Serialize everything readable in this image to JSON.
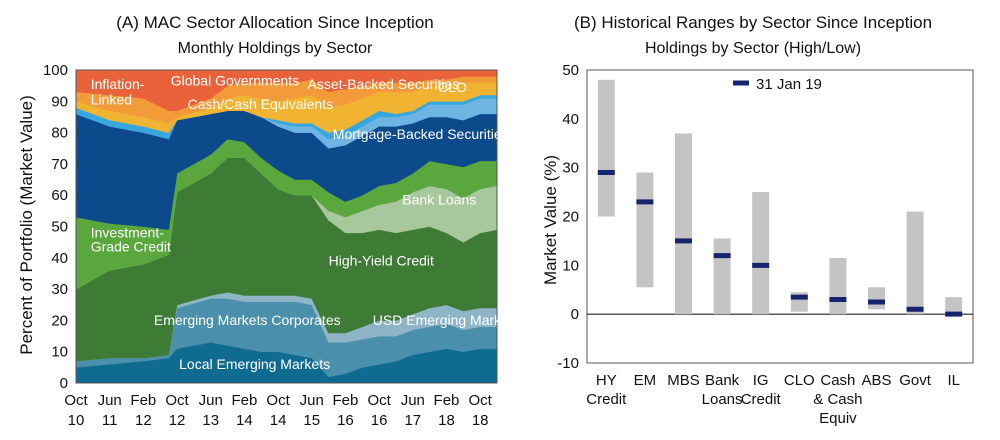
{
  "chart_data": [
    {
      "type": "area",
      "title": "(A) MAC Sector Allocation Since Inception",
      "subtitle": "Monthly Holdings by Sector",
      "ylabel": "Percent of Portfolio (Market Value)",
      "ylim": [
        0,
        100
      ],
      "yticks": [
        0,
        10,
        20,
        30,
        40,
        50,
        60,
        70,
        80,
        90,
        100
      ],
      "xticks": [
        {
          "month": "Oct",
          "year": "10",
          "t": 0
        },
        {
          "month": "Jun",
          "year": "11",
          "t": 8
        },
        {
          "month": "Feb",
          "year": "12",
          "t": 16
        },
        {
          "month": "Oct",
          "year": "12",
          "t": 24
        },
        {
          "month": "Jun",
          "year": "13",
          "t": 32
        },
        {
          "month": "Feb",
          "year": "14",
          "t": 40
        },
        {
          "month": "Oct",
          "year": "14",
          "t": 48
        },
        {
          "month": "Jun",
          "year": "15",
          "t": 56
        },
        {
          "month": "Feb",
          "year": "16",
          "t": 64
        },
        {
          "month": "Oct",
          "year": "16",
          "t": 72
        },
        {
          "month": "Jun",
          "year": "17",
          "t": 80
        },
        {
          "month": "Feb",
          "year": "18",
          "t": 88
        },
        {
          "month": "Oct",
          "year": "18",
          "t": 96
        }
      ],
      "x": [
        0,
        8,
        16,
        22,
        24,
        32,
        36,
        40,
        44,
        48,
        52,
        56,
        60,
        64,
        68,
        72,
        76,
        80,
        84,
        88,
        92,
        96,
        100
      ],
      "series": [
        {
          "name": "Local Emerging Markets",
          "color": "#0f6b8f",
          "values": [
            5,
            6,
            7,
            8,
            11,
            13,
            12,
            11,
            10,
            10,
            9,
            8,
            2,
            3,
            5,
            6,
            7,
            9,
            10,
            11,
            10,
            11,
            11
          ]
        },
        {
          "name": "Emerging Markets Corporates",
          "color": "#4a8fac",
          "values": [
            2,
            2,
            1,
            1,
            13,
            14,
            15,
            15,
            16,
            16,
            17,
            17,
            11,
            10,
            9,
            9,
            8,
            8,
            8,
            8,
            7,
            7,
            7
          ]
        },
        {
          "name": "USD Emerging Markets",
          "color": "#8fb4c6",
          "values": [
            0,
            0,
            0,
            0,
            1,
            1,
            2,
            2,
            2,
            2,
            2,
            2,
            3,
            3,
            4,
            5,
            5,
            5,
            6,
            6,
            6,
            6,
            6
          ]
        },
        {
          "name": "High-Yield Credit",
          "color": "#3e7c35",
          "values": [
            23,
            28,
            30,
            32,
            36,
            39,
            43,
            44,
            39,
            34,
            32,
            33,
            36,
            32,
            30,
            29,
            28,
            27,
            26,
            23,
            22,
            24,
            25
          ]
        },
        {
          "name": "Bank Loans",
          "color": "#a9c79d",
          "values": [
            0,
            0,
            0,
            0,
            0,
            0,
            0,
            0,
            0,
            0,
            0,
            0,
            3,
            5,
            7,
            8,
            10,
            12,
            13,
            14,
            14,
            14,
            14
          ]
        },
        {
          "name": "Investment-Grade Credit",
          "color": "#5aa73d",
          "values": [
            23,
            15,
            12,
            8,
            6,
            6,
            6,
            5,
            5,
            6,
            5,
            5,
            6,
            5,
            5,
            6,
            6,
            6,
            8,
            8,
            10,
            9,
            8
          ]
        },
        {
          "name": "Mortgage-Backed Securities",
          "color": "#0d4a8c",
          "values": [
            33,
            31,
            30,
            29,
            17,
            13,
            9,
            10,
            13,
            14,
            15,
            15,
            14,
            18,
            19,
            19,
            18,
            16,
            14,
            15,
            15,
            15,
            15
          ]
        },
        {
          "name": "CLO",
          "color": "#6fb5e3",
          "values": [
            0,
            0,
            0,
            0,
            0,
            0,
            0,
            0,
            0,
            1,
            2,
            2,
            3,
            3,
            3,
            3,
            3,
            3,
            4,
            4,
            5,
            5,
            5
          ]
        },
        {
          "name": "Inflation-Linked",
          "color": "#38a7dd",
          "values": [
            2,
            2,
            2,
            2,
            0,
            0,
            0,
            0,
            0,
            1,
            1,
            1,
            2,
            2,
            2,
            2,
            1,
            1,
            1,
            1,
            1,
            1,
            1
          ]
        },
        {
          "name": "Asset-Backed Securities",
          "color": "#f1b332",
          "values": [
            2,
            3,
            3,
            3,
            1,
            2,
            4,
            5,
            6,
            6,
            8,
            9,
            8,
            8,
            7,
            6,
            7,
            6,
            5,
            5,
            6,
            4,
            4
          ]
        },
        {
          "name": "Cash/Cash Equivalents",
          "color": "#f39a3b",
          "values": [
            3,
            5,
            6,
            4,
            2,
            3,
            4,
            4,
            5,
            6,
            5,
            5,
            5,
            5,
            4,
            3,
            3,
            3,
            2,
            2,
            2,
            2,
            2
          ]
        },
        {
          "name": "Global Governments",
          "color": "#e9623a",
          "values": [
            7,
            8,
            9,
            13,
            13,
            9,
            5,
            4,
            4,
            4,
            4,
            3,
            7,
            6,
            5,
            4,
            4,
            4,
            3,
            3,
            2,
            2,
            2
          ]
        }
      ],
      "annotations": [
        {
          "text": "Inflation-",
          "series": "Inflation-Linked"
        },
        {
          "text": "Linked",
          "series": "Inflation-Linked"
        },
        {
          "text": "Global Governments",
          "series": "Global Governments"
        },
        {
          "text": "Cash/Cash Equivalents",
          "series": "Cash/Cash Equivalents"
        },
        {
          "text": "Asset-Backed Securities",
          "series": "Asset-Backed Securities"
        },
        {
          "text": "CLO",
          "series": "CLO"
        },
        {
          "text": "Mortgage-Backed Securities",
          "series": "Mortgage-Backed Securities"
        },
        {
          "text": "Bank Loans",
          "series": "Bank Loans"
        },
        {
          "text": "Investment-",
          "series": "Investment-Grade Credit"
        },
        {
          "text": "Grade Credit",
          "series": "Investment-Grade Credit"
        },
        {
          "text": "High-Yield Credit",
          "series": "High-Yield Credit"
        },
        {
          "text": "Emerging Markets Corporates",
          "series": "Emerging Markets Corporates"
        },
        {
          "text": "USD Emerging Markets",
          "series": "USD Emerging Markets"
        },
        {
          "text": "Local Emerging Markets",
          "series": "Local Emerging Markets"
        }
      ]
    },
    {
      "type": "bar",
      "title": "(B) Historical Ranges by Sector Since Inception",
      "subtitle": "Holdings by Sector (High/Low)",
      "ylabel": "Market Value (%)",
      "ylim": [
        -10,
        50
      ],
      "yticks": [
        -10,
        0,
        10,
        20,
        30,
        40,
        50
      ],
      "legend": {
        "label": "31 Jan 19",
        "position": "top-center"
      },
      "range_color": "#c4c4c4",
      "marker_color": "#16246e",
      "categories": [
        [
          "HY",
          "Credit"
        ],
        [
          "EM"
        ],
        [
          "MBS"
        ],
        [
          "Bank",
          "Loans"
        ],
        [
          "IG",
          "Credit"
        ],
        [
          "CLO"
        ],
        [
          "Cash",
          "& Cash",
          "Equiv"
        ],
        [
          "ABS"
        ],
        [
          "Govt"
        ],
        [
          "IL"
        ]
      ],
      "low": [
        20,
        5.5,
        0,
        0,
        0,
        0.5,
        0,
        1,
        0,
        0
      ],
      "high": [
        48,
        29,
        37,
        15.5,
        25,
        4.5,
        11.5,
        5.5,
        21,
        3.5
      ],
      "current": [
        29,
        23,
        15,
        12,
        10,
        3.5,
        3,
        2.5,
        1,
        0
      ]
    }
  ]
}
